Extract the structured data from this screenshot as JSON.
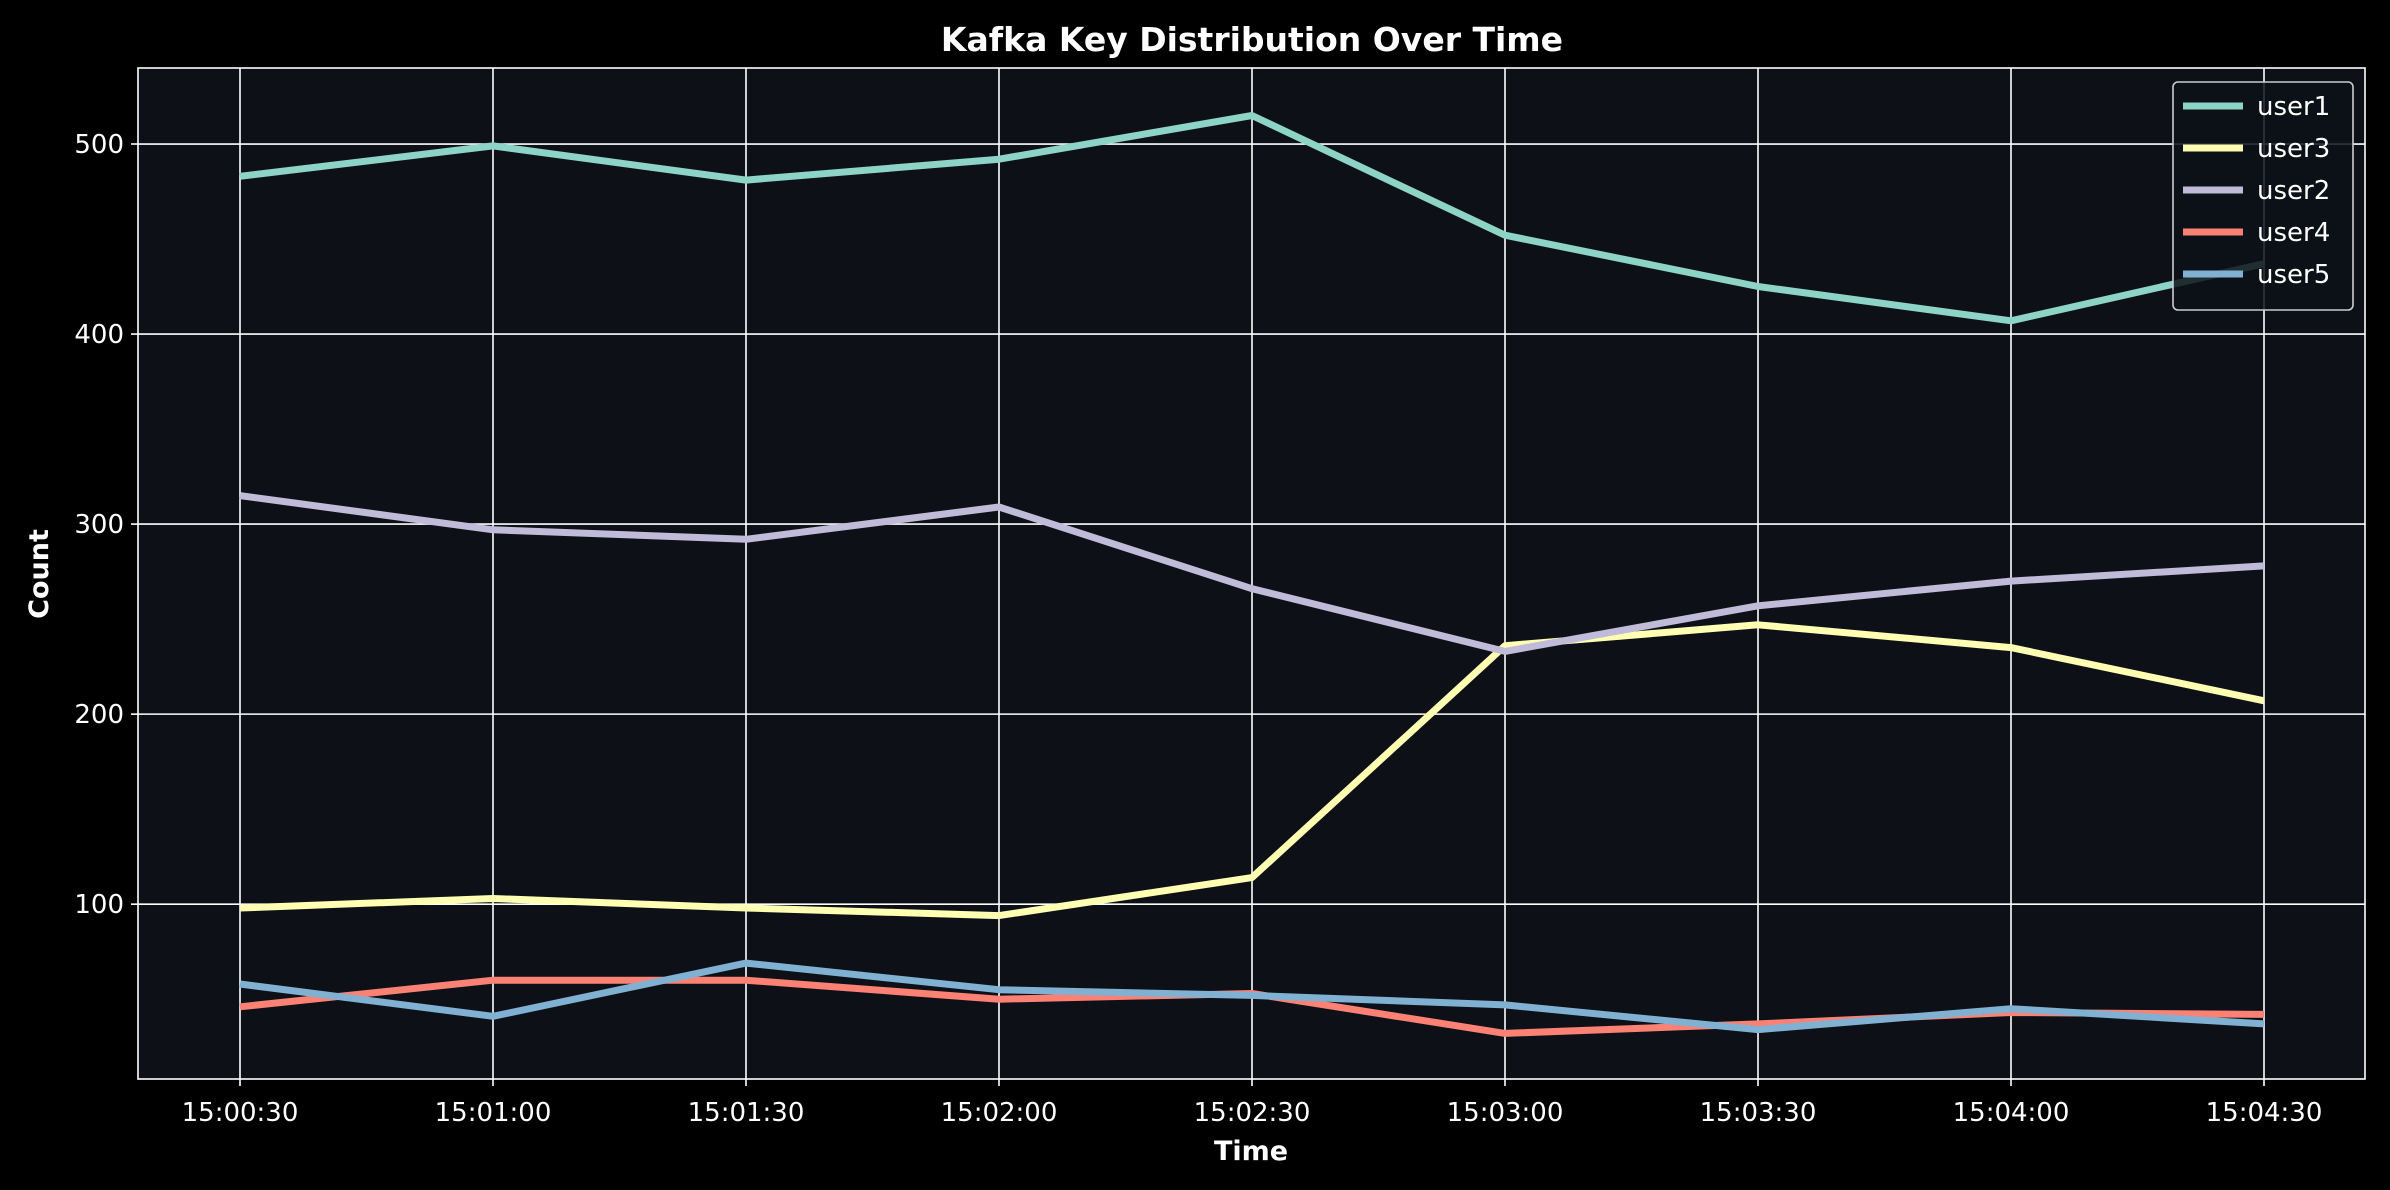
{
  "chart_data": {
    "type": "line",
    "title": "Kafka Key Distribution Over Time",
    "xlabel": "Time",
    "ylabel": "Count",
    "x": [
      "15:00:30",
      "15:01:00",
      "15:01:30",
      "15:02:00",
      "15:02:30",
      "15:03:00",
      "15:03:30",
      "15:04:00",
      "15:04:30"
    ],
    "ylim": [
      8,
      540
    ],
    "yticks": [
      100,
      200,
      300,
      400,
      500
    ],
    "grid": true,
    "legend_position": "top-right",
    "background_color": "#0d1117",
    "series": [
      {
        "name": "user1",
        "color": "#8dd3c7",
        "values": [
          483,
          499,
          481,
          492,
          515,
          452,
          425,
          407,
          437
        ]
      },
      {
        "name": "user3",
        "color": "#feffb3",
        "values": [
          98,
          103,
          98,
          94,
          114,
          236,
          247,
          235,
          207
        ]
      },
      {
        "name": "user2",
        "color": "#bfbbd9",
        "values": [
          315,
          297,
          292,
          309,
          266,
          233,
          257,
          270,
          278
        ]
      },
      {
        "name": "user4",
        "color": "#fa8174",
        "values": [
          46,
          60,
          60,
          50,
          53,
          32,
          37,
          43,
          42
        ]
      },
      {
        "name": "user5",
        "color": "#81b1d2",
        "values": [
          58,
          41,
          69,
          55,
          52,
          47,
          34,
          45,
          37
        ]
      }
    ]
  }
}
